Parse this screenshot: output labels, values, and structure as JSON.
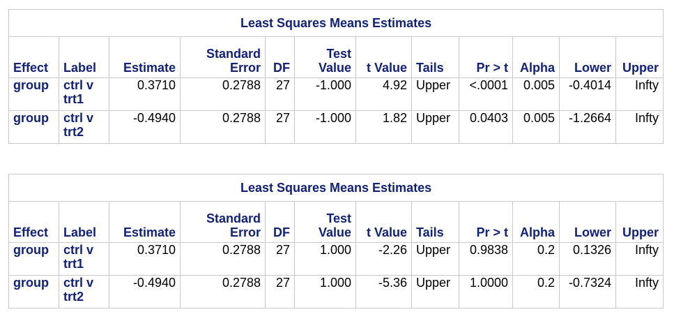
{
  "tables": [
    {
      "title": "Least Squares Means Estimates",
      "headers": {
        "effect": "Effect",
        "label": "Label",
        "estimate": "Estimate",
        "stderr_1": "Standard",
        "stderr_2": "Error",
        "df": "DF",
        "test_1": "Test",
        "test_2": "Value",
        "tvalue": "t Value",
        "tails": "Tails",
        "pr": "Pr > t",
        "alpha": "Alpha",
        "lower": "Lower",
        "upper": "Upper"
      },
      "rows": [
        {
          "effect": "group",
          "label_1": "ctrl v",
          "label_2": "trt1",
          "estimate": "0.3710",
          "stderr": "0.2788",
          "df": "27",
          "test": "-1.000",
          "tvalue": "4.92",
          "tails": "Upper",
          "pr": "<.0001",
          "alpha": "0.005",
          "lower": "-0.4014",
          "upper": "Infty"
        },
        {
          "effect": "group",
          "label_1": "ctrl v",
          "label_2": "trt2",
          "estimate": "-0.4940",
          "stderr": "0.2788",
          "df": "27",
          "test": "-1.000",
          "tvalue": "1.82",
          "tails": "Upper",
          "pr": "0.0403",
          "alpha": "0.005",
          "lower": "-1.2664",
          "upper": "Infty"
        }
      ]
    },
    {
      "title": "Least Squares Means Estimates",
      "headers": {
        "effect": "Effect",
        "label": "Label",
        "estimate": "Estimate",
        "stderr_1": "Standard",
        "stderr_2": "Error",
        "df": "DF",
        "test_1": "Test",
        "test_2": "Value",
        "tvalue": "t Value",
        "tails": "Tails",
        "pr": "Pr > t",
        "alpha": "Alpha",
        "lower": "Lower",
        "upper": "Upper"
      },
      "rows": [
        {
          "effect": "group",
          "label_1": "ctrl v",
          "label_2": "trt1",
          "estimate": "0.3710",
          "stderr": "0.2788",
          "df": "27",
          "test": "1.000",
          "tvalue": "-2.26",
          "tails": "Upper",
          "pr": "0.9838",
          "alpha": "0.2",
          "lower": "0.1326",
          "upper": "Infty"
        },
        {
          "effect": "group",
          "label_1": "ctrl v",
          "label_2": "trt2",
          "estimate": "-0.4940",
          "stderr": "0.2788",
          "df": "27",
          "test": "1.000",
          "tvalue": "-5.36",
          "tails": "Upper",
          "pr": "1.0000",
          "alpha": "0.2",
          "lower": "-0.7324",
          "upper": "Infty"
        }
      ]
    }
  ]
}
